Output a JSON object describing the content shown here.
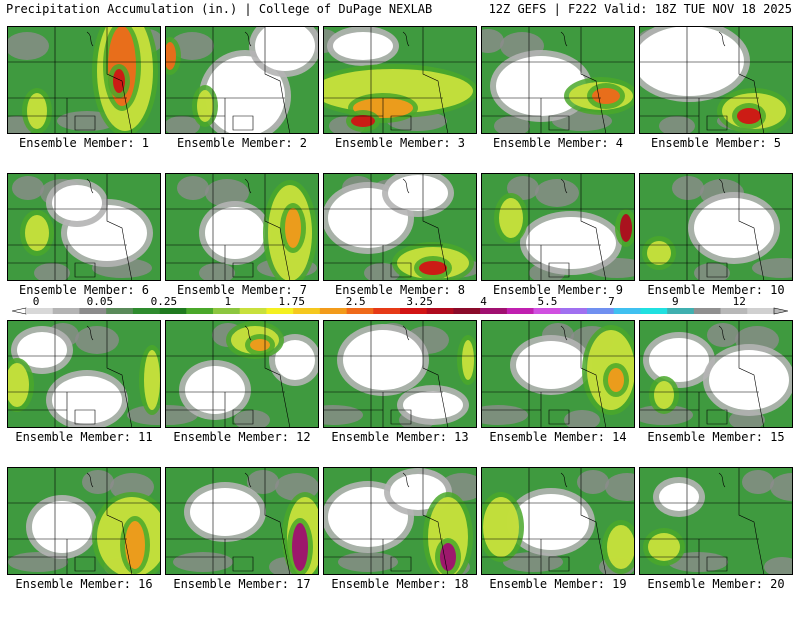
{
  "header": {
    "title_left": "Precipitation Accumulation (in.) | College of DuPage NEXLAB",
    "title_right": "12Z GEFS | F222 Valid: 18Z TUE NOV 18 2025"
  },
  "colorbar": {
    "labels": [
      "0",
      "0.05",
      "0.25",
      "1",
      "1.75",
      "2.5",
      "3.25",
      "4",
      "5.5",
      "7",
      "9",
      "12"
    ],
    "colors": [
      "#d8d8d8",
      "#b4b4b4",
      "#8c8c8c",
      "#5a8a5a",
      "#2e8b2e",
      "#1f7a1f",
      "#4aa82a",
      "#8cc63f",
      "#c8e03c",
      "#f4f020",
      "#f5c81e",
      "#f29b1b",
      "#ef6a1a",
      "#e63a17",
      "#d21414",
      "#b00a1e",
      "#8a0a2a",
      "#a01070",
      "#c020b0",
      "#d050e0",
      "#a070f0",
      "#7090f0",
      "#40c0f0",
      "#20e0e0",
      "#40b0b0",
      "#909090",
      "#b8b8b8",
      "#d0d0d0"
    ]
  },
  "panels": [
    {
      "label": "Ensemble Member: 1"
    },
    {
      "label": "Ensemble Member: 2"
    },
    {
      "label": "Ensemble Member: 3"
    },
    {
      "label": "Ensemble Member: 4"
    },
    {
      "label": "Ensemble Member: 5"
    },
    {
      "label": "Ensemble Member: 6"
    },
    {
      "label": "Ensemble Member: 7"
    },
    {
      "label": "Ensemble Member: 8"
    },
    {
      "label": "Ensemble Member: 9"
    },
    {
      "label": "Ensemble Member: 10"
    },
    {
      "label": "Ensemble Member: 11"
    },
    {
      "label": "Ensemble Member: 12"
    },
    {
      "label": "Ensemble Member: 13"
    },
    {
      "label": "Ensemble Member: 14"
    },
    {
      "label": "Ensemble Member: 15"
    },
    {
      "label": "Ensemble Member: 16"
    },
    {
      "label": "Ensemble Member: 17"
    },
    {
      "label": "Ensemble Member: 18"
    },
    {
      "label": "Ensemble Member: 19"
    },
    {
      "label": "Ensemble Member: 20"
    }
  ]
}
